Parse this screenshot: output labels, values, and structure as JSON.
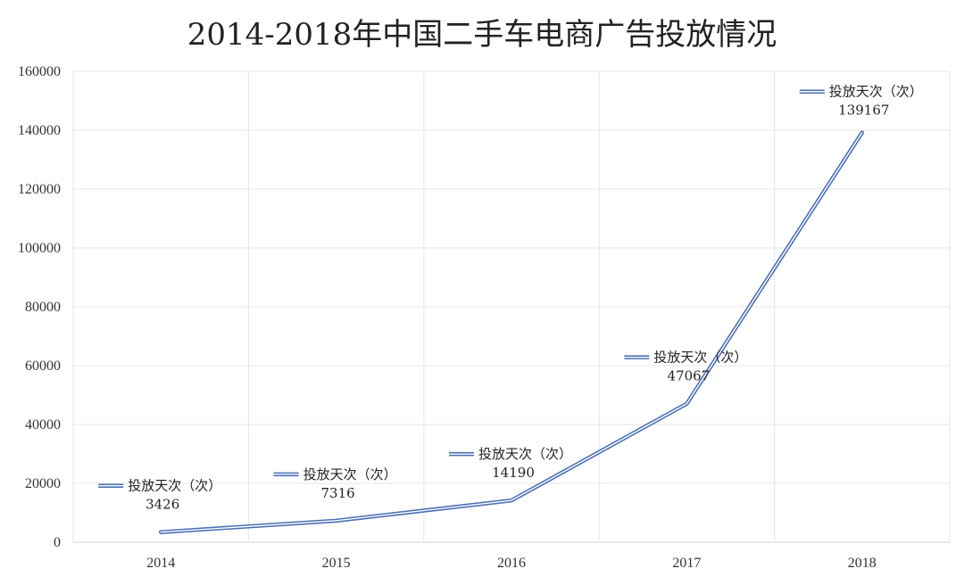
{
  "chart_data": {
    "type": "line",
    "title": "2014-2018年中国二手车电商广告投放情况",
    "xlabel": "",
    "ylabel": "",
    "categories": [
      "2014",
      "2015",
      "2016",
      "2017",
      "2018"
    ],
    "series": [
      {
        "name": "投放天次（次）",
        "values": [
          3426,
          7316,
          14190,
          47067,
          139167
        ],
        "color": "#4a6fb5"
      }
    ],
    "ylim": [
      0,
      160000
    ],
    "yticks": [
      "0",
      "20000",
      "40000",
      "60000",
      "80000",
      "100000",
      "120000",
      "140000",
      "160000"
    ],
    "grid": true,
    "legend": "none",
    "data_labels": [
      "3426",
      "7316",
      "14190",
      "47067",
      "139167"
    ]
  }
}
